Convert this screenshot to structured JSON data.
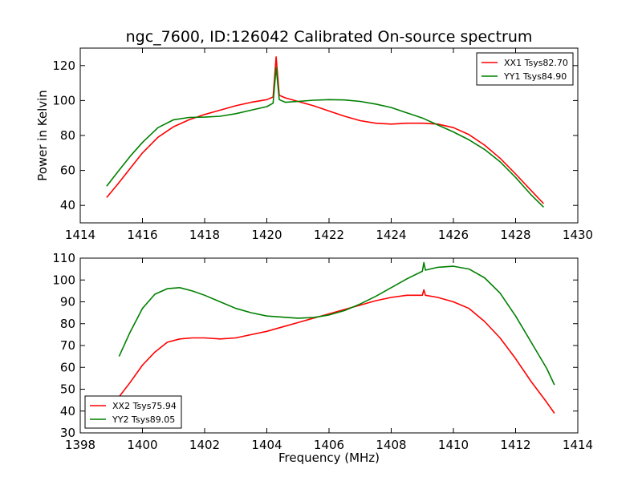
{
  "chart_data": [
    {
      "type": "line",
      "title": "ngc_7600, ID:126042 Calibrated On-source spectrum",
      "xlabel": "",
      "ylabel": "Power in Kelvin",
      "xlim": [
        1414,
        1430
      ],
      "ylim": [
        30,
        130
      ],
      "xticks": [
        "1414",
        "1416",
        "1418",
        "1420",
        "1422",
        "1424",
        "1426",
        "1428",
        "1430"
      ],
      "yticks": [
        "40",
        "60",
        "80",
        "100",
        "120"
      ],
      "legend_position": "top-right",
      "grid": false,
      "series": [
        {
          "name": "XX1 Tsys82.70",
          "color": "#ff0000",
          "x": [
            1414.85,
            1415.2,
            1415.6,
            1416.0,
            1416.5,
            1417.0,
            1417.5,
            1418.0,
            1418.5,
            1419.0,
            1419.5,
            1420.0,
            1420.2,
            1420.3,
            1420.4,
            1420.6,
            1421.0,
            1421.5,
            1422.0,
            1422.5,
            1423.0,
            1423.5,
            1424.0,
            1424.5,
            1425.0,
            1425.5,
            1426.0,
            1426.5,
            1427.0,
            1427.5,
            1428.0,
            1428.5,
            1428.9
          ],
          "y": [
            44.5,
            52,
            61,
            70,
            79,
            85,
            89,
            92,
            94.5,
            97,
            99,
            100.5,
            102,
            125,
            103,
            101.5,
            99.5,
            97,
            94,
            91,
            88.5,
            87,
            86.5,
            87,
            87,
            86.5,
            84.5,
            80.5,
            74.5,
            67,
            58,
            48.5,
            41
          ]
        },
        {
          "name": "YY1 Tsys84.90",
          "color": "#008000",
          "x": [
            1414.85,
            1415.2,
            1415.6,
            1416.0,
            1416.5,
            1417.0,
            1417.5,
            1418.0,
            1418.5,
            1419.0,
            1419.5,
            1420.0,
            1420.2,
            1420.3,
            1420.4,
            1420.6,
            1421.0,
            1421.5,
            1422.0,
            1422.5,
            1423.0,
            1423.5,
            1424.0,
            1424.5,
            1425.0,
            1425.5,
            1426.0,
            1426.5,
            1427.0,
            1427.5,
            1428.0,
            1428.5,
            1428.9
          ],
          "y": [
            51,
            59,
            68,
            76,
            84.5,
            89,
            90.3,
            90.5,
            91,
            92.5,
            94.5,
            96.5,
            98.5,
            119,
            100.5,
            99,
            99.5,
            100.2,
            100.5,
            100.3,
            99.5,
            98,
            96,
            93,
            90,
            86,
            82,
            77.5,
            72,
            65,
            56,
            46,
            39
          ]
        }
      ]
    },
    {
      "type": "line",
      "title": "",
      "xlabel": "Frequency (MHz)",
      "ylabel": "",
      "xlim": [
        1398,
        1414
      ],
      "ylim": [
        30,
        110
      ],
      "xticks": [
        "1398",
        "1400",
        "1402",
        "1404",
        "1406",
        "1408",
        "1410",
        "1412",
        "1414"
      ],
      "yticks": [
        "30",
        "40",
        "50",
        "60",
        "70",
        "80",
        "90",
        "100",
        "110"
      ],
      "legend_position": "bottom-left",
      "grid": false,
      "series": [
        {
          "name": "XX2 Tsys75.94",
          "color": "#ff0000",
          "x": [
            1399.25,
            1399.6,
            1400.0,
            1400.4,
            1400.8,
            1401.2,
            1401.6,
            1402.0,
            1402.5,
            1403.0,
            1403.5,
            1404.0,
            1404.5,
            1405.0,
            1405.5,
            1406.0,
            1406.5,
            1407.0,
            1407.5,
            1408.0,
            1408.5,
            1409.0,
            1409.05,
            1409.1,
            1409.5,
            1410.0,
            1410.5,
            1411.0,
            1411.5,
            1412.0,
            1412.5,
            1413.0,
            1413.25
          ],
          "y": [
            46.5,
            53,
            61,
            67,
            71.5,
            73,
            73.5,
            73.5,
            73,
            73.5,
            75,
            76.5,
            78.5,
            80.5,
            82.5,
            84.5,
            86.5,
            88.5,
            90.5,
            92,
            93,
            93,
            95.5,
            93,
            92,
            90,
            87,
            81,
            73.5,
            64,
            53.5,
            44,
            39
          ]
        },
        {
          "name": "YY2 Tsys89.05",
          "color": "#008000",
          "x": [
            1399.25,
            1399.6,
            1400.0,
            1400.4,
            1400.8,
            1401.2,
            1401.6,
            1402.0,
            1402.5,
            1403.0,
            1403.5,
            1404.0,
            1404.5,
            1405.0,
            1405.5,
            1406.0,
            1406.5,
            1407.0,
            1407.5,
            1408.0,
            1408.5,
            1409.0,
            1409.05,
            1409.1,
            1409.5,
            1410.0,
            1410.5,
            1411.0,
            1411.5,
            1412.0,
            1412.5,
            1413.0,
            1413.25
          ],
          "y": [
            65,
            76,
            87,
            93.5,
            96,
            96.5,
            95,
            93,
            90,
            87,
            85,
            83.5,
            83,
            82.5,
            82.8,
            84,
            86,
            89,
            92.5,
            96.5,
            100.5,
            104,
            108,
            104.5,
            105.8,
            106.3,
            105,
            101,
            94,
            83.5,
            71.5,
            59.5,
            52
          ]
        }
      ]
    }
  ]
}
